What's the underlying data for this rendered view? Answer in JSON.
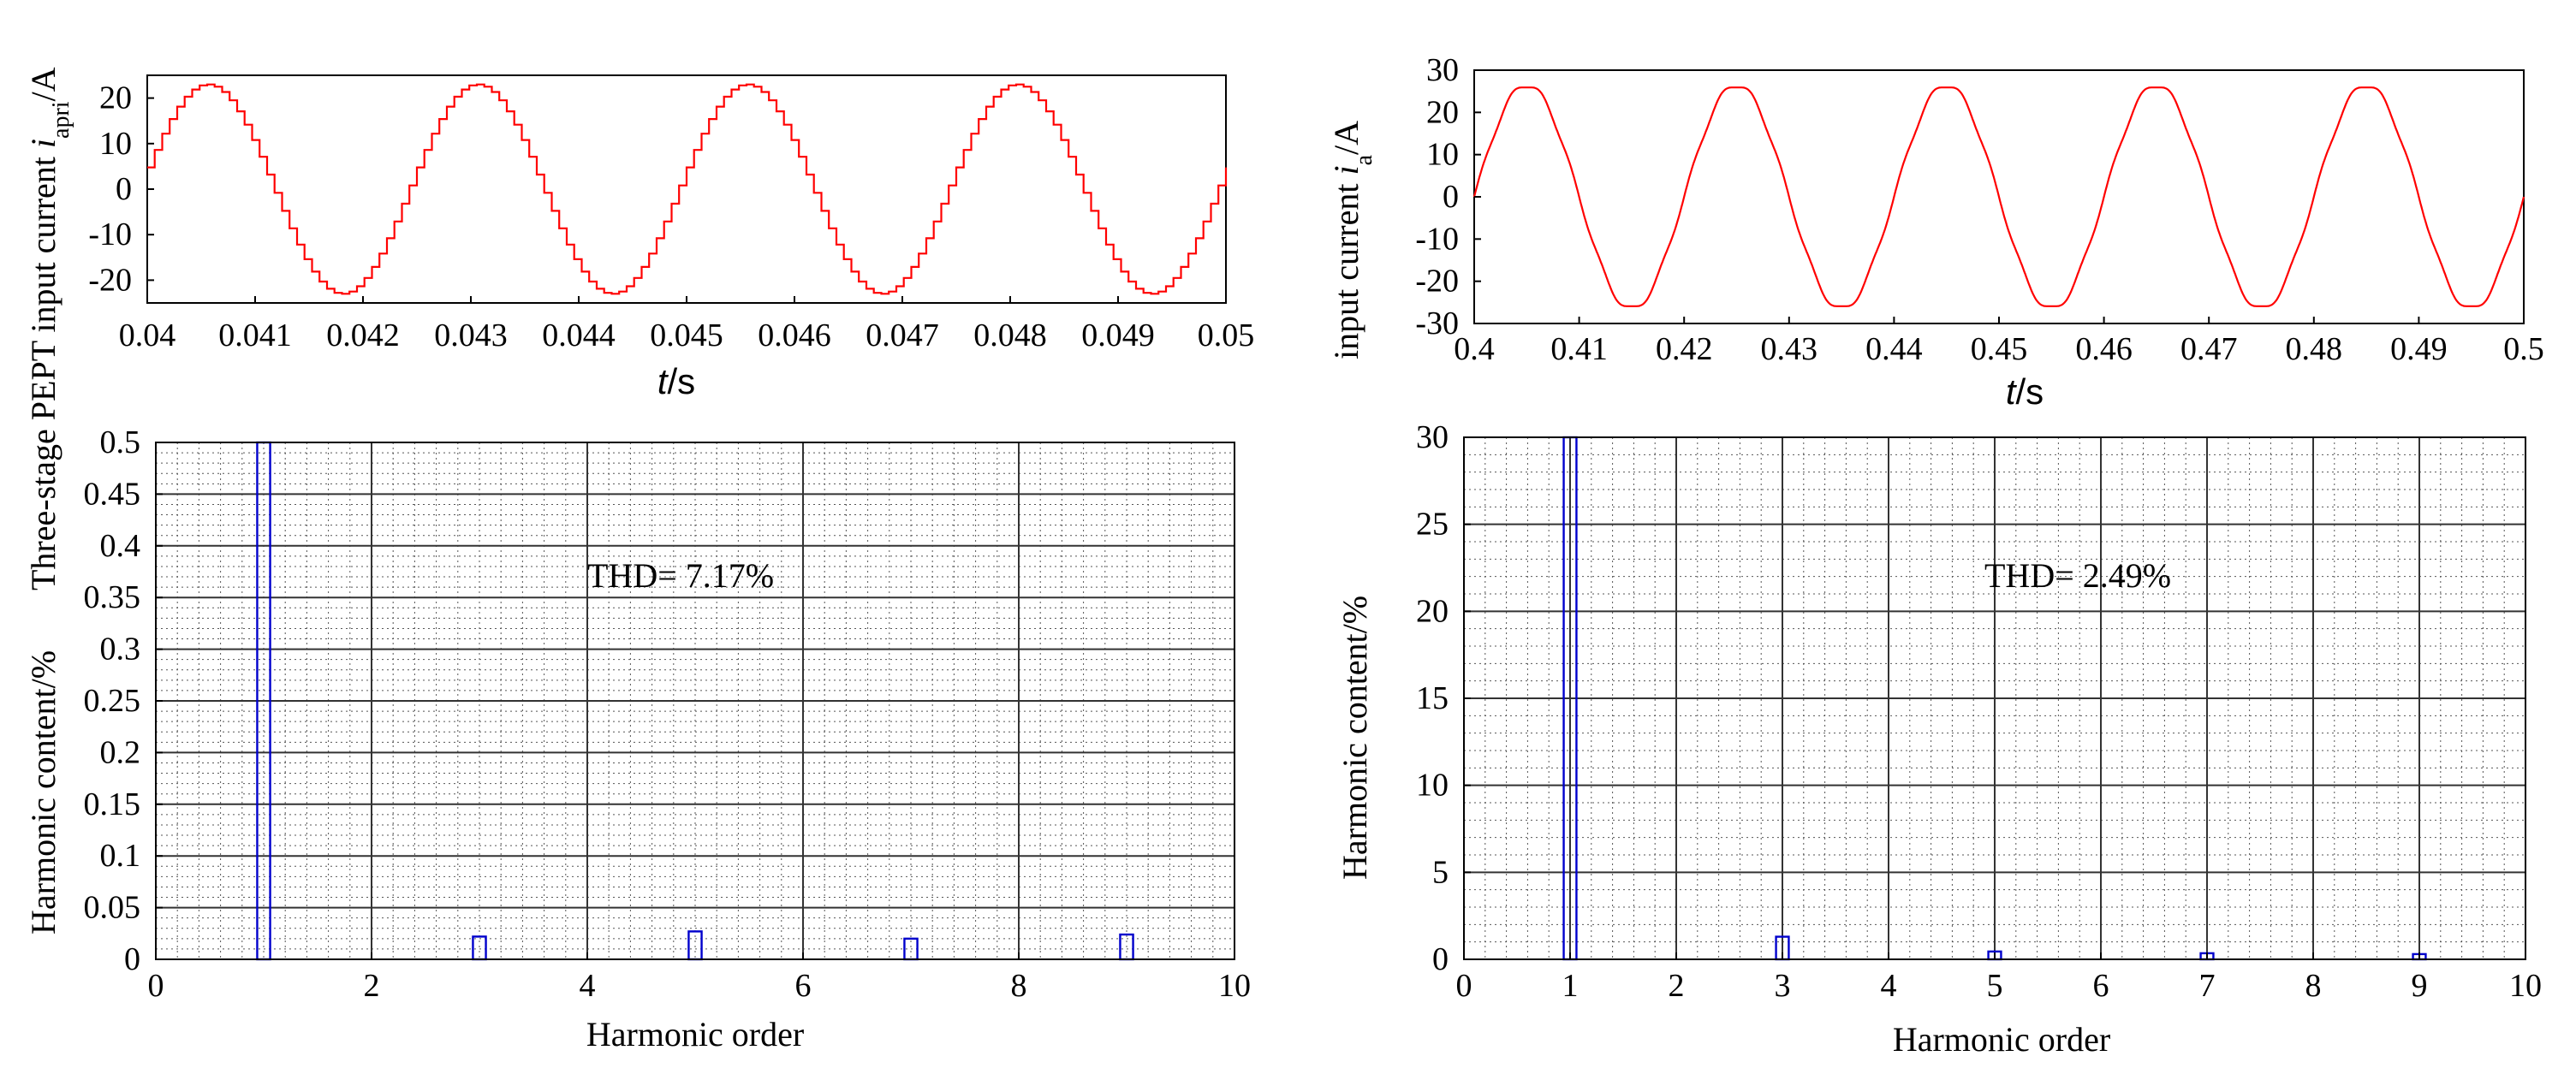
{
  "chart_data": [
    {
      "id": "top-left",
      "type": "line",
      "ylabel_prefix": "Three-stage PEPT input current ",
      "ylabel_var": "i",
      "ylabel_sub": "apri",
      "ylabel_suffix": "/A",
      "xlabel_var": "t",
      "xlabel_suffix": "/s",
      "xlim": [
        0.04,
        0.05
      ],
      "ylim": [
        -25,
        25
      ],
      "x_ticks": [
        "0.04",
        "0.041",
        "0.042",
        "0.043",
        "0.044",
        "0.045",
        "0.046",
        "0.047",
        "0.048",
        "0.049",
        "0.05"
      ],
      "y_ticks": [
        "20",
        "10",
        "0",
        "-10",
        "-20"
      ],
      "grid": false,
      "series": [
        {
          "shape": "staircase sine",
          "amplitude": 23,
          "frequency_hz": 400,
          "phase_deg": 7,
          "steps_per_period": 36,
          "color": "#ff0000"
        }
      ]
    },
    {
      "id": "top-right",
      "type": "line",
      "ylabel_prefix": "input current ",
      "ylabel_var": "i",
      "ylabel_sub": "a",
      "ylabel_suffix": "/A",
      "xlabel_var": "t",
      "xlabel_suffix": "/s",
      "xlim": [
        0.4,
        0.5
      ],
      "ylim": [
        -30,
        30
      ],
      "x_ticks": [
        "0.4",
        "0.41",
        "0.42",
        "0.43",
        "0.44",
        "0.45",
        "0.46",
        "0.47",
        "0.48",
        "0.49",
        "0.5"
      ],
      "y_ticks": [
        "30",
        "20",
        "10",
        "0",
        "-10",
        "-20",
        "-30"
      ],
      "grid": false,
      "series": [
        {
          "shape": "sine",
          "amplitude": 26.5,
          "frequency_hz": 50,
          "phase_deg": 0,
          "color": "#ff0000"
        }
      ]
    },
    {
      "id": "bottom-left",
      "type": "bar",
      "ylabel": "Harmonic content/%",
      "xlabel": "Harmonic order",
      "annotation": "THD= 7.17%",
      "xlim": [
        0,
        10
      ],
      "ylim": [
        0,
        0.5
      ],
      "x_ticks": [
        "0",
        "2",
        "4",
        "6",
        "8",
        "10"
      ],
      "y_ticks": [
        "0.5",
        "0.45",
        "0.4",
        "0.35",
        "0.3",
        "0.25",
        "0.2",
        "0.15",
        "0.1",
        "0.05",
        "0"
      ],
      "grid": true,
      "bar_color": "#0000cc",
      "bars": [
        {
          "order": 1,
          "value": 0.5
        },
        {
          "order": 3,
          "value": 0.022
        },
        {
          "order": 5,
          "value": 0.027
        },
        {
          "order": 7,
          "value": 0.02
        },
        {
          "order": 9,
          "value": 0.024
        }
      ]
    },
    {
      "id": "bottom-right",
      "type": "bar",
      "ylabel": "Harmonic content/%",
      "xlabel": "Harmonic order",
      "annotation": "THD= 2.49%",
      "xlim": [
        0,
        10
      ],
      "ylim": [
        0,
        30
      ],
      "x_ticks": [
        "0",
        "1",
        "2",
        "3",
        "4",
        "5",
        "6",
        "7",
        "8",
        "9",
        "10"
      ],
      "y_ticks": [
        "30",
        "25",
        "20",
        "15",
        "10",
        "5",
        "0"
      ],
      "grid": true,
      "bar_color": "#0000cc",
      "bars": [
        {
          "order": 1,
          "value": 30
        },
        {
          "order": 3,
          "value": 1.3
        },
        {
          "order": 5,
          "value": 0.45
        },
        {
          "order": 7,
          "value": 0.35
        },
        {
          "order": 9,
          "value": 0.3
        }
      ]
    }
  ]
}
